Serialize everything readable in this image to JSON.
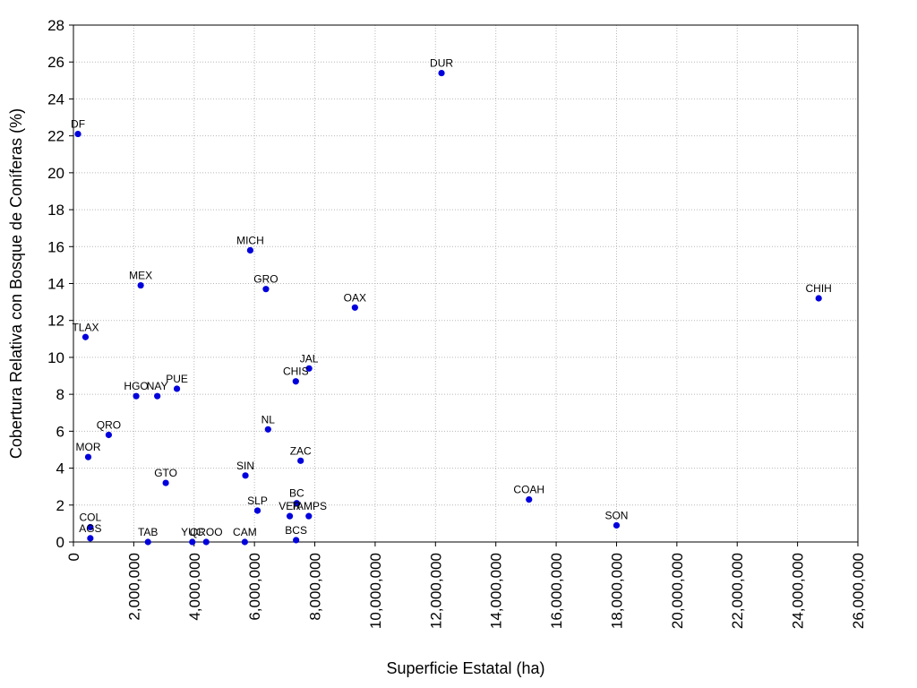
{
  "chart_data": {
    "type": "scatter",
    "title": "",
    "xlabel": "Superficie Estatal (ha)",
    "ylabel": "Cobertura Relativa con Bosque de Coníferas (%)",
    "xlim": [
      0,
      26000000
    ],
    "ylim": [
      0,
      28
    ],
    "xticks": [
      0,
      2000000,
      4000000,
      6000000,
      8000000,
      10000000,
      12000000,
      14000000,
      16000000,
      18000000,
      20000000,
      22000000,
      24000000,
      26000000
    ],
    "xtick_labels": [
      "0",
      "2,000,000",
      "4,000,000",
      "6,000,000",
      "8,000,000",
      "10,000,000",
      "12,000,000",
      "14,000,000",
      "16,000,000",
      "18,000,000",
      "20,000,000",
      "22,000,000",
      "24,000,000",
      "26,000,000"
    ],
    "yticks": [
      0,
      2,
      4,
      6,
      8,
      10,
      12,
      14,
      16,
      18,
      20,
      22,
      24,
      26,
      28
    ],
    "ytick_labels": [
      "0",
      "2",
      "4",
      "6",
      "8",
      "10",
      "12",
      "14",
      "16",
      "18",
      "20",
      "22",
      "24",
      "26",
      "28"
    ],
    "grid": true,
    "legend": "none",
    "marker_color": "#0000dd",
    "points": [
      {
        "label": "DUR",
        "x": 12200000,
        "y": 25.4
      },
      {
        "label": "DF",
        "x": 150000,
        "y": 22.1
      },
      {
        "label": "MICH",
        "x": 5860000,
        "y": 15.8
      },
      {
        "label": "MEX",
        "x": 2230000,
        "y": 13.9
      },
      {
        "label": "GRO",
        "x": 6380000,
        "y": 13.7
      },
      {
        "label": "OAX",
        "x": 9330000,
        "y": 12.7
      },
      {
        "label": "CHIH",
        "x": 24700000,
        "y": 13.2
      },
      {
        "label": "TLAX",
        "x": 400000,
        "y": 11.1
      },
      {
        "label": "JAL",
        "x": 7810000,
        "y": 9.4
      },
      {
        "label": "CHIS",
        "x": 7370000,
        "y": 8.7
      },
      {
        "label": "PUE",
        "x": 3430000,
        "y": 8.3
      },
      {
        "label": "HGO",
        "x": 2080000,
        "y": 7.9
      },
      {
        "label": "NAY",
        "x": 2780000,
        "y": 7.9
      },
      {
        "label": "NL",
        "x": 6450000,
        "y": 6.1
      },
      {
        "label": "QRO",
        "x": 1170000,
        "y": 5.8
      },
      {
        "label": "MOR",
        "x": 490000,
        "y": 4.6
      },
      {
        "label": "ZAC",
        "x": 7530000,
        "y": 4.4
      },
      {
        "label": "SIN",
        "x": 5700000,
        "y": 3.6
      },
      {
        "label": "GTO",
        "x": 3060000,
        "y": 3.2
      },
      {
        "label": "COAH",
        "x": 15100000,
        "y": 2.3
      },
      {
        "label": "BC",
        "x": 7400000,
        "y": 2.1
      },
      {
        "label": "SLP",
        "x": 6100000,
        "y": 1.7
      },
      {
        "label": "VER",
        "x": 7170000,
        "y": 1.4
      },
      {
        "label": "TAMPS",
        "x": 7800000,
        "y": 1.4
      },
      {
        "label": "SON",
        "x": 18000000,
        "y": 0.9
      },
      {
        "label": "COL",
        "x": 560000,
        "y": 0.8
      },
      {
        "label": "AGS",
        "x": 560000,
        "y": 0.2
      },
      {
        "label": "TAB",
        "x": 2470000,
        "y": 0.0
      },
      {
        "label": "QROO",
        "x": 4400000,
        "y": 0.0
      },
      {
        "label": "YUC",
        "x": 3940000,
        "y": 0.0
      },
      {
        "label": "CAM",
        "x": 5680000,
        "y": 0.0
      },
      {
        "label": "BCS",
        "x": 7380000,
        "y": 0.1
      }
    ]
  }
}
